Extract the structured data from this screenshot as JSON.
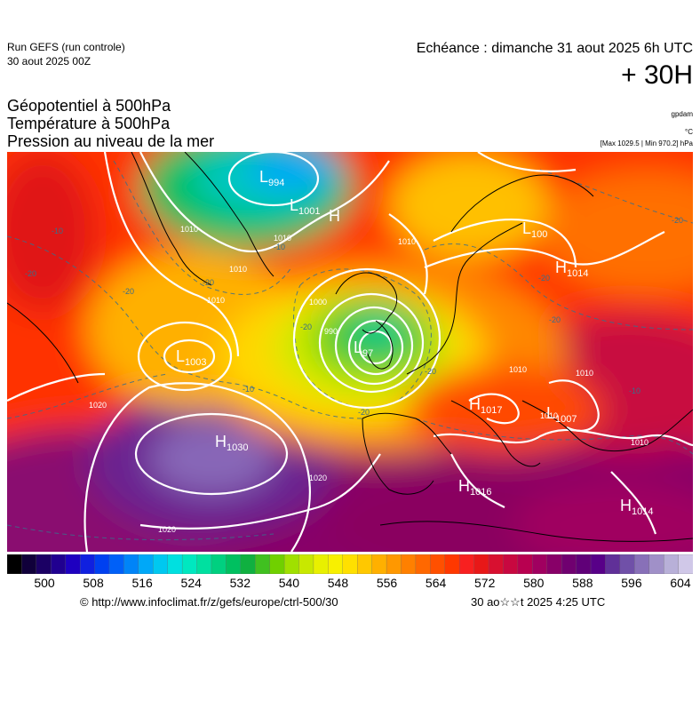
{
  "header": {
    "run_line1": "Run GEFS (run controle)",
    "run_line2": "30 aout 2025 00Z",
    "valid_time": "Echéance : dimanche 31 aout 2025 6h UTC",
    "lead_time": "+ 30H"
  },
  "titles": {
    "line1": "Géopotentiel à 500hPa",
    "line2": "Température à 500hPa",
    "line3": "Pression au niveau de la mer"
  },
  "units": {
    "geopotential": "gpdam",
    "temperature": "°C",
    "pressure_range": "[Max 1029.5 | Min 970.2] hPa"
  },
  "pressure_centers": [
    {
      "type": "L",
      "value": "994"
    },
    {
      "type": "L",
      "value": "1001"
    },
    {
      "type": "H",
      "value": ""
    },
    {
      "type": "L",
      "value": "97"
    },
    {
      "type": "L",
      "value": "1003"
    },
    {
      "type": "H",
      "value": "1030"
    },
    {
      "type": "L",
      "value": "100"
    },
    {
      "type": "H",
      "value": "1014"
    },
    {
      "type": "H",
      "value": "1017"
    },
    {
      "type": "L",
      "value": "1007"
    },
    {
      "type": "H",
      "value": "1016"
    },
    {
      "type": "H",
      "value": "1014"
    }
  ],
  "isobar_labels": [
    "1010",
    "1010",
    "1010",
    "1000",
    "1010",
    "1020",
    "1020",
    "1020",
    "1010",
    "1010",
    "1010",
    "990",
    "1010",
    "1010"
  ],
  "temperature_labels": [
    "-10",
    "-20",
    "-20",
    "-20",
    "-10",
    "-20",
    "-20",
    "-10",
    "-20",
    "-20",
    "-10",
    "-20",
    "-20"
  ],
  "colorbar": {
    "labels": [
      "500",
      "508",
      "516",
      "524",
      "532",
      "540",
      "548",
      "556",
      "564",
      "572",
      "580",
      "588",
      "596",
      "604"
    ],
    "colors": [
      "#000000",
      "#10003a",
      "#1b0064",
      "#200090",
      "#1e00c0",
      "#1020e0",
      "#0040f0",
      "#0060f8",
      "#0084f8",
      "#00a8f8",
      "#00c8f0",
      "#00e0e0",
      "#00e8c0",
      "#00e0a0",
      "#00d080",
      "#00c060",
      "#10b040",
      "#40c020",
      "#70d000",
      "#a0e000",
      "#c8e800",
      "#e8f000",
      "#f8f000",
      "#ffe000",
      "#ffc800",
      "#ffb000",
      "#ff9800",
      "#ff8000",
      "#ff6800",
      "#ff5000",
      "#ff3800",
      "#f82020",
      "#e81818",
      "#d81030",
      "#c80840",
      "#b80050",
      "#a00060",
      "#880068",
      "#700070",
      "#600078",
      "#580088",
      "#603098",
      "#7050a8",
      "#8870b8",
      "#a090c8",
      "#b8b0d8",
      "#d0c8e8"
    ]
  },
  "footer": {
    "copyright": "© http://www.infoclimat.fr/z/gefs/europe/ctrl-500/30",
    "generated": "30 ao☆☆t 2025  4:25 UTC"
  },
  "colors": {
    "isobar": "#ffffff",
    "coastline": "#000000",
    "temperature_line": "#3a6e8a"
  }
}
